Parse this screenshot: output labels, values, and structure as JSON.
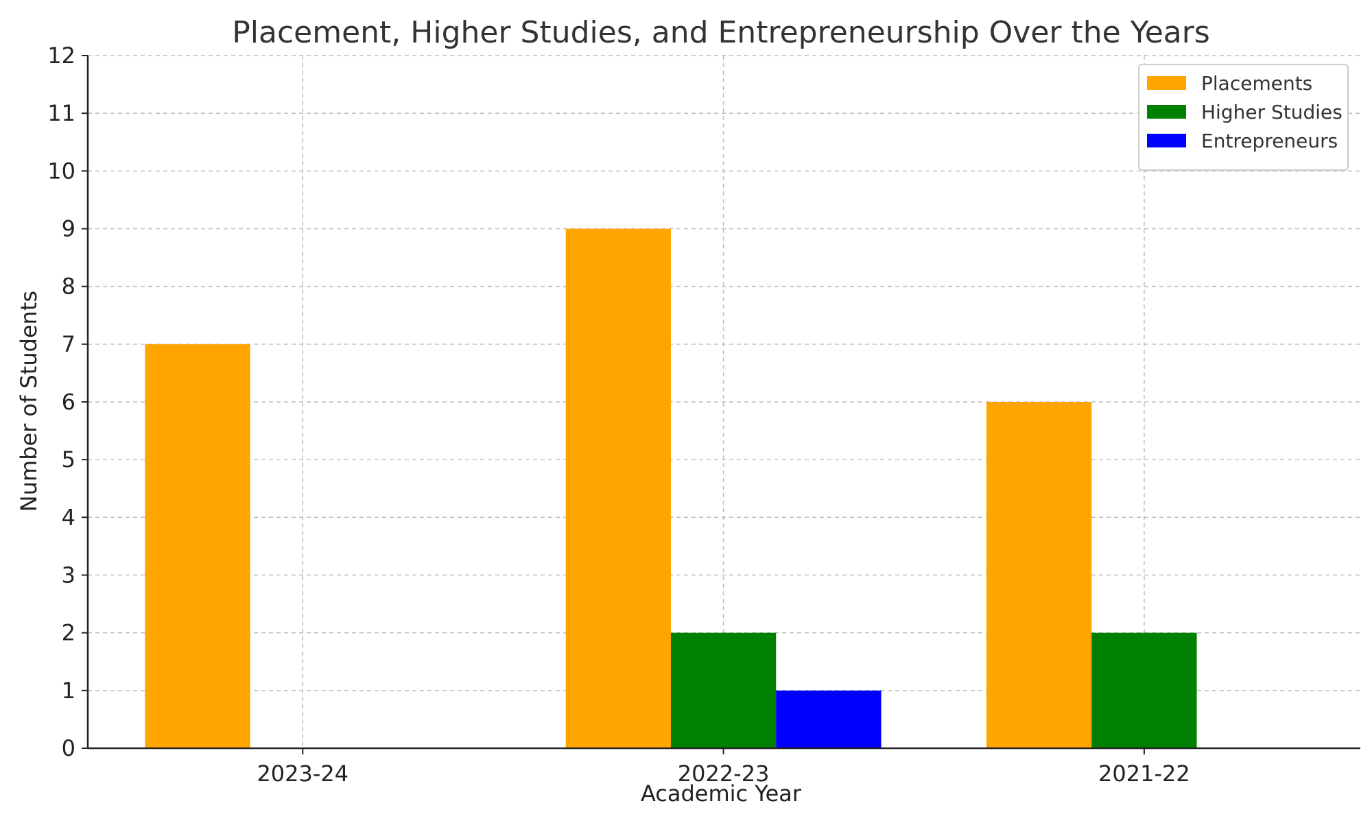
{
  "chart_data": {
    "type": "bar",
    "title": "Placement, Higher Studies, and Entrepreneurship Over the Years",
    "xlabel": "Academic Year",
    "ylabel": "Number of Students",
    "categories": [
      "2023-24",
      "2022-23",
      "2021-22"
    ],
    "series": [
      {
        "name": "Placements",
        "color": "#FFA500",
        "values": [
          7,
          9,
          6
        ]
      },
      {
        "name": "Higher Studies",
        "color": "#008000",
        "values": [
          0,
          2,
          2
        ]
      },
      {
        "name": "Entrepreneurs",
        "color": "#0000FF",
        "values": [
          0,
          1,
          0
        ]
      }
    ],
    "ylim": [
      0,
      12
    ],
    "yticks": [
      0,
      1,
      2,
      3,
      4,
      5,
      6,
      7,
      8,
      9,
      10,
      11,
      12
    ],
    "grid": true,
    "legend_position": "top-right"
  }
}
